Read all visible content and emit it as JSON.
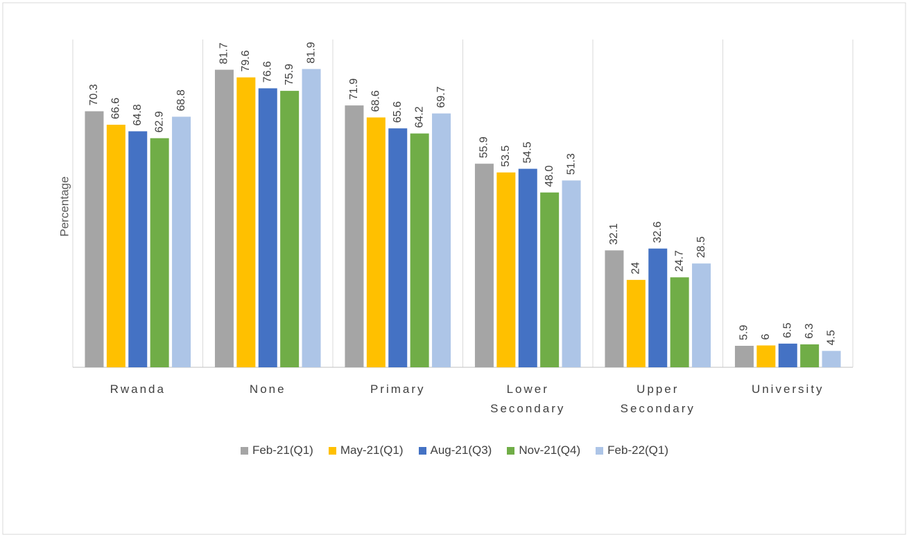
{
  "chart_data": {
    "type": "bar",
    "y_label": "Percentage",
    "categories": [
      "Rwanda",
      "None",
      "Primary",
      "Lower Secondary",
      "Upper Secondary",
      "University"
    ],
    "series": [
      {
        "name": "Feb-21(Q1)",
        "color": "#a5a5a5",
        "values": [
          70.3,
          81.7,
          71.9,
          55.9,
          32.1,
          5.9
        ]
      },
      {
        "name": "May-21(Q1)",
        "color": "#ffc000",
        "values": [
          66.6,
          79.6,
          68.6,
          53.5,
          24,
          6
        ]
      },
      {
        "name": "Aug-21(Q3)",
        "color": "#4472c4",
        "values": [
          64.8,
          76.6,
          65.6,
          54.5,
          32.6,
          6.5
        ]
      },
      {
        "name": "Nov-21(Q4)",
        "color": "#70ad47",
        "values": [
          62.9,
          75.9,
          64.2,
          48.0,
          24.7,
          6.3
        ],
        "value_labels": [
          "62.9",
          "75.9",
          "64.2",
          "48.0",
          "24.7",
          "6.3"
        ]
      },
      {
        "name": "Feb-22(Q1)",
        "color": "#adc5e7",
        "values": [
          68.8,
          81.9,
          69.7,
          51.3,
          28.5,
          4.5
        ]
      }
    ],
    "ylim": [
      0,
      90
    ]
  }
}
